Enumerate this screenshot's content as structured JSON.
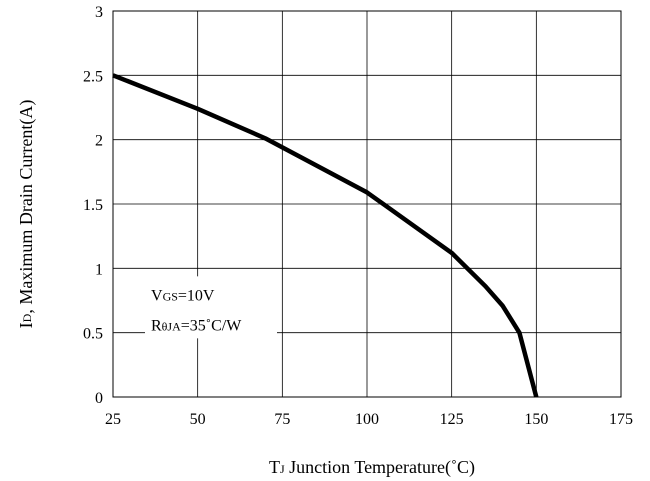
{
  "chart_data": {
    "type": "line",
    "title": "",
    "xlabel": {
      "parts": [
        {
          "text": "T",
          "small": false
        },
        {
          "text": "J",
          "small": true
        },
        {
          "text": " Junction Temperature(˚C)",
          "small": false
        }
      ]
    },
    "ylabel": {
      "parts": [
        {
          "text": "I",
          "small": false
        },
        {
          "text": "D",
          "small": true
        },
        {
          "text": ", Maximum Drain Current(A)",
          "small": false
        }
      ]
    },
    "xlim": [
      25,
      175
    ],
    "ylim": [
      0,
      3
    ],
    "xticks": [
      25,
      50,
      75,
      100,
      125,
      150,
      175
    ],
    "yticks": [
      0,
      0.5,
      1,
      1.5,
      2,
      2.5,
      3
    ],
    "xtick_labels": [
      "25",
      "50",
      "75",
      "100",
      "125",
      "150",
      "175"
    ],
    "ytick_labels": [
      "0",
      "0.5",
      "1",
      "1.5",
      "2",
      "2.5",
      "3"
    ],
    "grid": true,
    "series": [
      {
        "color": "#000000",
        "x": [
          25,
          50,
          70,
          100,
          125,
          135,
          140,
          145,
          150
        ],
        "y": [
          2.5,
          2.24,
          2.01,
          1.59,
          1.12,
          0.86,
          0.71,
          0.5,
          0
        ]
      }
    ],
    "annotations": [
      {
        "parts": [
          {
            "text": "V",
            "small": false
          },
          {
            "text": "GS",
            "small": true
          },
          {
            "text": "=10V",
            "small": false
          }
        ]
      },
      {
        "parts": [
          {
            "text": "R",
            "small": false
          },
          {
            "text": "θJA",
            "small": true
          },
          {
            "text": "=35˚C/W",
            "small": false
          }
        ]
      }
    ]
  }
}
